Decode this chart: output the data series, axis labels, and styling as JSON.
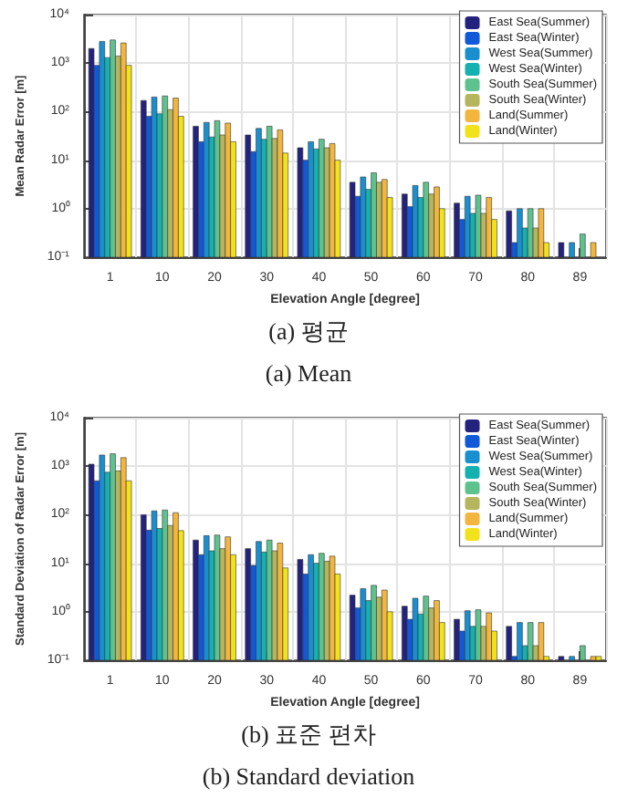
{
  "chart_data": [
    {
      "type": "bar",
      "xlabel": "Elevation Angle [degree]",
      "ylabel": "Mean Radar Error [m]",
      "annotations": [
        "(a) 평균",
        "(a) Mean"
      ],
      "categories": [
        "1",
        "10",
        "20",
        "30",
        "40",
        "50",
        "60",
        "70",
        "80",
        "89"
      ],
      "log": true,
      "ylim": [
        0.1,
        10000
      ],
      "yticks": [
        {
          "value": 0.1,
          "label": "10⁻¹"
        },
        {
          "value": 1,
          "label": "10⁰"
        },
        {
          "value": 10,
          "label": "10¹"
        },
        {
          "value": 100,
          "label": "10²"
        },
        {
          "value": 1000,
          "label": "10³"
        },
        {
          "value": 10000,
          "label": "10⁴"
        }
      ],
      "grid": true,
      "legend": "top right",
      "series": [
        {
          "name": "East Sea(Summer)",
          "color": "#23237e",
          "values": [
            2000,
            170,
            50,
            33,
            18,
            3.5,
            2,
            1.3,
            0.9,
            0.2
          ]
        },
        {
          "name": "East Sea(Winter)",
          "color": "#1059d8",
          "values": [
            900,
            80,
            24,
            15,
            10,
            1.8,
            1.1,
            0.6,
            0.2,
            null
          ]
        },
        {
          "name": "West Sea(Summer)",
          "color": "#1a8fd0",
          "values": [
            2800,
            200,
            60,
            45,
            24,
            4.5,
            3,
            1.8,
            1,
            0.2
          ]
        },
        {
          "name": "West Sea(Winter)",
          "color": "#15b0b0",
          "values": [
            1300,
            90,
            30,
            27,
            17,
            2.5,
            1.7,
            0.8,
            0.4,
            null
          ]
        },
        {
          "name": "South Sea(Summer)",
          "color": "#5ec28f",
          "values": [
            3000,
            210,
            65,
            50,
            27,
            5.5,
            3.5,
            1.9,
            1,
            0.3
          ]
        },
        {
          "name": "South Sea(Winter)",
          "color": "#b5b55e",
          "values": [
            1400,
            110,
            33,
            28,
            18,
            3.5,
            2,
            0.8,
            0.4,
            null
          ]
        },
        {
          "name": "Land(Summer)",
          "color": "#f2b63e",
          "values": [
            2600,
            190,
            58,
            42,
            22,
            4,
            2.8,
            1.7,
            1,
            0.2
          ]
        },
        {
          "name": "Land(Winter)",
          "color": "#f2e21c",
          "values": [
            900,
            80,
            24,
            14,
            10,
            1.7,
            1,
            0.6,
            0.2,
            null
          ]
        }
      ]
    },
    {
      "type": "bar",
      "xlabel": "Elevation Angle [degree]",
      "ylabel": "Standard Deviation of Radar Error [m]",
      "annotations": [
        "(b) 표준 편차",
        "(b) Standard deviation"
      ],
      "categories": [
        "1",
        "10",
        "20",
        "30",
        "40",
        "50",
        "60",
        "70",
        "80",
        "89"
      ],
      "log": true,
      "ylim": [
        0.1,
        10000
      ],
      "yticks": [
        {
          "value": 0.1,
          "label": "10⁻¹"
        },
        {
          "value": 1,
          "label": "10⁰"
        },
        {
          "value": 10,
          "label": "10¹"
        },
        {
          "value": 100,
          "label": "10²"
        },
        {
          "value": 1000,
          "label": "10³"
        },
        {
          "value": 10000,
          "label": "10⁴"
        }
      ],
      "grid": true,
      "legend": "top right",
      "series": [
        {
          "name": "East Sea(Summer)",
          "color": "#23237e",
          "values": [
            1100,
            100,
            30,
            20,
            12,
            2.2,
            1.3,
            0.7,
            0.5,
            0.12
          ]
        },
        {
          "name": "East Sea(Winter)",
          "color": "#1059d8",
          "values": [
            500,
            48,
            15,
            9,
            6,
            1.2,
            0.7,
            0.4,
            0.12,
            null
          ]
        },
        {
          "name": "West Sea(Summer)",
          "color": "#1a8fd0",
          "values": [
            1700,
            120,
            37,
            28,
            15,
            3,
            1.9,
            1.05,
            0.6,
            0.12
          ]
        },
        {
          "name": "West Sea(Winter)",
          "color": "#15b0b0",
          "values": [
            750,
            52,
            18,
            17,
            10,
            1.7,
            0.9,
            0.5,
            0.2,
            null
          ]
        },
        {
          "name": "South Sea(Summer)",
          "color": "#5ec28f",
          "values": [
            1800,
            125,
            38,
            30,
            16,
            3.5,
            2.1,
            1.1,
            0.6,
            0.2
          ]
        },
        {
          "name": "South Sea(Winter)",
          "color": "#b5b55e",
          "values": [
            800,
            60,
            20,
            18,
            11,
            2,
            1.2,
            0.5,
            0.2,
            null
          ]
        },
        {
          "name": "Land(Summer)",
          "color": "#f2b63e",
          "values": [
            1500,
            110,
            35,
            26,
            14,
            2.8,
            1.7,
            0.95,
            0.6,
            0.12
          ]
        },
        {
          "name": "Land(Winter)",
          "color": "#f2e21c",
          "values": [
            500,
            47,
            15,
            8,
            6,
            1,
            0.6,
            0.4,
            0.12,
            0.12
          ]
        }
      ]
    }
  ]
}
